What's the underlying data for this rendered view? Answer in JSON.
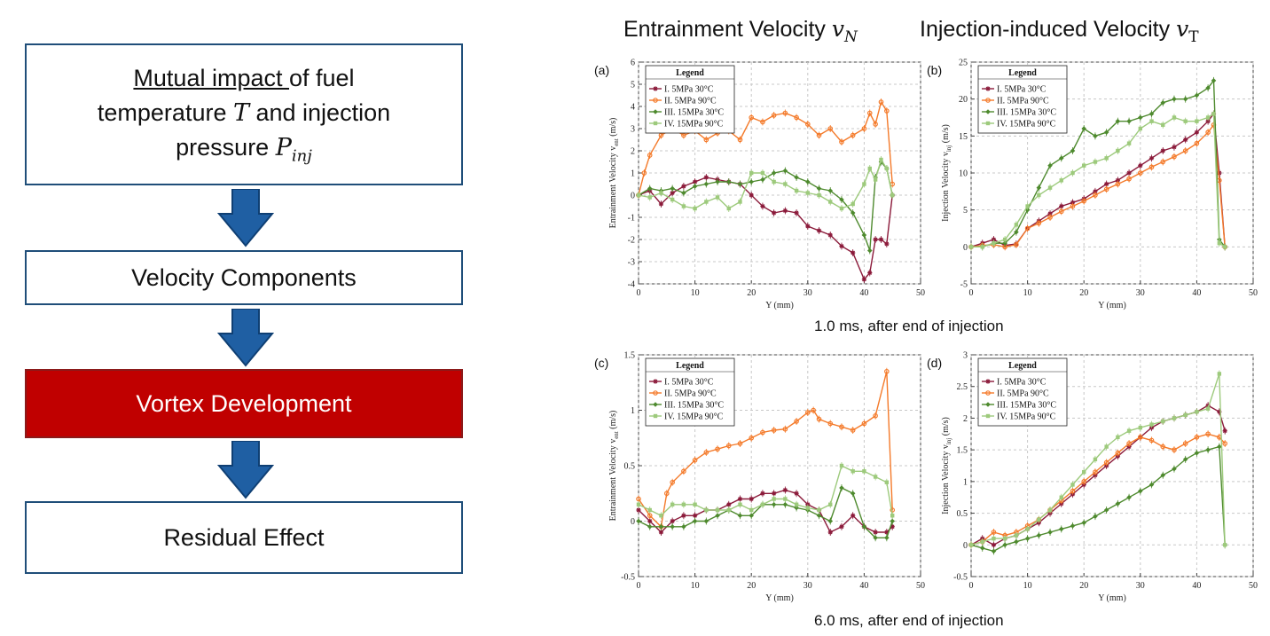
{
  "flowchart": {
    "box1": {
      "underline": "Mutual impact ",
      "line1_rest": "of fuel",
      "line2_pre": "temperature ",
      "line2_var": "T",
      "line2_post": " and injection",
      "line3_pre": "pressure ",
      "line3_var": "P",
      "line3_sub": "inj"
    },
    "box2": "Velocity Components",
    "box3": "Vortex Development",
    "box4": "Residual Effect",
    "colors": {
      "arrow": "#1f5fa3",
      "arrow_edge": "#0f3f73",
      "highlight": "#c00000",
      "border": "#1f4e79"
    }
  },
  "headers": {
    "left": {
      "text": "Entrainment Velocity ",
      "var": "v",
      "sub": "N"
    },
    "right": {
      "text": "Injection-induced Velocity ",
      "var": "v",
      "sub": "T"
    }
  },
  "captions": {
    "top": "1.0 ms, after end of injection",
    "bottom": "6.0 ms, after end of injection"
  },
  "chart_data": [
    {
      "id": "a",
      "type": "line",
      "panel_label": "(a)",
      "xlabel": "Y (mm)",
      "ylabel": "Entrainment Velocity v",
      "ylabel_sub": "ent",
      "ylabel_unit": "(m/s)",
      "xlim": [
        0,
        50
      ],
      "ylim": [
        -4,
        6
      ],
      "xticks": [
        0,
        10,
        20,
        30,
        40,
        50
      ],
      "yticks": [
        -4,
        -3,
        -2,
        -1,
        0,
        1,
        2,
        3,
        4,
        5,
        6
      ],
      "grid": true,
      "legend_title": "Legend",
      "legend_position": "top-left",
      "series": [
        {
          "name": "I. 5MPa 30°C",
          "color": "#8b1a3a",
          "x": [
            0,
            2,
            4,
            6,
            8,
            10,
            12,
            14,
            16,
            18,
            20,
            22,
            24,
            26,
            28,
            30,
            32,
            34,
            36,
            38,
            40,
            41,
            42,
            43,
            44,
            45
          ],
          "values": [
            0,
            0.2,
            -0.4,
            0.1,
            0.4,
            0.6,
            0.8,
            0.7,
            0.6,
            0.5,
            0,
            -0.5,
            -0.8,
            -0.7,
            -0.8,
            -1.4,
            -1.6,
            -1.8,
            -2.3,
            -2.6,
            -3.8,
            -3.5,
            -2.0,
            -2.0,
            -2.2,
            0
          ]
        },
        {
          "name": "II. 5MPa 90°C",
          "color": "#f47a2a",
          "x": [
            0,
            1,
            2,
            4,
            6,
            8,
            10,
            12,
            14,
            16,
            18,
            20,
            22,
            24,
            26,
            28,
            30,
            32,
            34,
            36,
            38,
            40,
            41,
            42,
            43,
            44,
            45
          ],
          "values": [
            0,
            1,
            1.8,
            2.7,
            3.0,
            2.7,
            2.9,
            2.5,
            2.8,
            2.9,
            2.5,
            3.5,
            3.3,
            3.6,
            3.7,
            3.5,
            3.2,
            2.7,
            3.0,
            2.4,
            2.7,
            3.0,
            3.7,
            3.2,
            4.2,
            3.8,
            0.5
          ]
        },
        {
          "name": "III. 15MPa 30°C",
          "color": "#4e8a2e",
          "x": [
            0,
            2,
            4,
            6,
            8,
            10,
            12,
            14,
            16,
            18,
            20,
            22,
            24,
            26,
            28,
            30,
            32,
            34,
            36,
            38,
            40,
            41,
            42,
            43,
            44,
            45
          ],
          "values": [
            0,
            0.3,
            0.2,
            0.3,
            0.1,
            0.4,
            0.5,
            0.6,
            0.6,
            0.5,
            0.6,
            0.7,
            1.0,
            1.1,
            0.8,
            0.6,
            0.3,
            0.2,
            -0.2,
            -0.8,
            -1.8,
            -2.5,
            0.8,
            1.5,
            1.2,
            0
          ]
        },
        {
          "name": "IV. 15MPa 90°C",
          "color": "#9dca7c",
          "x": [
            0,
            2,
            4,
            6,
            8,
            10,
            12,
            14,
            16,
            18,
            20,
            22,
            24,
            26,
            28,
            30,
            32,
            34,
            36,
            38,
            40,
            41,
            42,
            43,
            44,
            45
          ],
          "values": [
            0,
            -0.1,
            0.1,
            -0.2,
            -0.5,
            -0.6,
            -0.3,
            -0.1,
            -0.6,
            -0.3,
            1.0,
            1.0,
            0.6,
            0.5,
            0.2,
            0.1,
            0,
            -0.3,
            -0.6,
            -0.4,
            0.5,
            1.2,
            0.7,
            1.6,
            1.2,
            0
          ]
        }
      ]
    },
    {
      "id": "b",
      "type": "line",
      "panel_label": "(b)",
      "xlabel": "Y (mm)",
      "ylabel": "Injection Velocity v",
      "ylabel_sub": "inj",
      "ylabel_unit": "(m/s)",
      "xlim": [
        0,
        50
      ],
      "ylim": [
        -5,
        25
      ],
      "xticks": [
        0,
        10,
        20,
        30,
        40,
        50
      ],
      "yticks": [
        -5,
        0,
        5,
        10,
        15,
        20,
        25
      ],
      "grid": true,
      "legend_title": "Legend",
      "legend_position": "top-left",
      "series": [
        {
          "name": "I. 5MPa 30°C",
          "color": "#8b1a3a",
          "x": [
            0,
            2,
            4,
            6,
            8,
            10,
            12,
            14,
            16,
            18,
            20,
            22,
            24,
            26,
            28,
            30,
            32,
            34,
            36,
            38,
            40,
            42,
            43,
            44,
            45
          ],
          "values": [
            0,
            0.5,
            1,
            0.2,
            0.4,
            2.5,
            3.5,
            4.5,
            5.5,
            6.0,
            6.5,
            7.5,
            8.5,
            9.0,
            10,
            11,
            12,
            13,
            13.5,
            14.5,
            15.5,
            17,
            18,
            10,
            0
          ]
        },
        {
          "name": "II. 5MPa 90°C",
          "color": "#f47a2a",
          "x": [
            0,
            2,
            4,
            6,
            8,
            10,
            12,
            14,
            16,
            18,
            20,
            22,
            24,
            26,
            28,
            30,
            32,
            34,
            36,
            38,
            40,
            42,
            43,
            44,
            45
          ],
          "values": [
            0,
            0.2,
            0.3,
            0,
            0.3,
            2.5,
            3.2,
            4.0,
            4.8,
            5.5,
            6.2,
            7.0,
            7.8,
            8.5,
            9.2,
            10,
            10.8,
            11.5,
            12.2,
            13,
            14,
            15.5,
            16.5,
            9,
            0
          ]
        },
        {
          "name": "III. 15MPa 30°C",
          "color": "#4e8a2e",
          "x": [
            0,
            2,
            4,
            6,
            8,
            10,
            12,
            14,
            16,
            18,
            20,
            22,
            24,
            26,
            28,
            30,
            32,
            34,
            36,
            38,
            40,
            42,
            43,
            44,
            45
          ],
          "values": [
            0,
            0,
            0.5,
            0.5,
            2,
            5,
            8,
            11,
            12,
            13,
            16,
            15,
            15.5,
            17,
            17,
            17.5,
            18,
            19.5,
            20,
            20,
            20.5,
            21.5,
            22.5,
            1,
            0
          ]
        },
        {
          "name": "IV. 15MPa 90°C",
          "color": "#9dca7c",
          "x": [
            0,
            2,
            4,
            6,
            8,
            10,
            12,
            14,
            16,
            18,
            20,
            22,
            24,
            26,
            28,
            30,
            32,
            34,
            36,
            38,
            40,
            42,
            43,
            44,
            45
          ],
          "values": [
            0,
            0,
            0.5,
            1,
            3,
            5.5,
            7,
            8,
            9,
            10,
            11,
            11.5,
            12,
            13,
            14,
            16,
            17,
            16.5,
            17.5,
            17,
            17,
            17.5,
            18,
            0.5,
            0
          ]
        }
      ]
    },
    {
      "id": "c",
      "type": "line",
      "panel_label": "(c)",
      "xlabel": "Y (mm)",
      "ylabel": "Entrainment Velocity v",
      "ylabel_sub": "ent",
      "ylabel_unit": "(m/s)",
      "xlim": [
        0,
        50
      ],
      "ylim": [
        -0.5,
        1.5
      ],
      "xticks": [
        0,
        10,
        20,
        30,
        40,
        50
      ],
      "yticks": [
        -0.5,
        0,
        0.5,
        1,
        1.5
      ],
      "grid": true,
      "legend_title": "Legend",
      "legend_position": "top-left",
      "series": [
        {
          "name": "I. 5MPa 30°C",
          "color": "#8b1a3a",
          "x": [
            0,
            2,
            4,
            6,
            8,
            10,
            12,
            14,
            16,
            18,
            20,
            22,
            24,
            26,
            28,
            30,
            32,
            34,
            36,
            38,
            40,
            42,
            44,
            45
          ],
          "values": [
            0.1,
            0,
            -0.1,
            0,
            0.05,
            0.05,
            0.1,
            0.1,
            0.15,
            0.2,
            0.2,
            0.25,
            0.25,
            0.28,
            0.25,
            0.15,
            0.1,
            -0.1,
            -0.05,
            0.05,
            -0.05,
            -0.1,
            -0.1,
            -0.05
          ]
        },
        {
          "name": "II. 5MPa 90°C",
          "color": "#f47a2a",
          "x": [
            0,
            2,
            4,
            5,
            6,
            8,
            10,
            12,
            14,
            16,
            18,
            20,
            22,
            24,
            26,
            28,
            30,
            31,
            32,
            34,
            36,
            38,
            40,
            42,
            44,
            45
          ],
          "values": [
            0.2,
            0.05,
            -0.05,
            0.25,
            0.35,
            0.45,
            0.55,
            0.62,
            0.65,
            0.68,
            0.7,
            0.75,
            0.8,
            0.82,
            0.83,
            0.9,
            0.98,
            1.0,
            0.92,
            0.88,
            0.85,
            0.82,
            0.88,
            0.95,
            1.35,
            0.1
          ]
        },
        {
          "name": "III. 15MPa 30°C",
          "color": "#4e8a2e",
          "x": [
            0,
            2,
            4,
            6,
            8,
            10,
            12,
            14,
            16,
            18,
            20,
            22,
            24,
            26,
            28,
            30,
            32,
            34,
            36,
            38,
            40,
            42,
            44,
            45
          ],
          "values": [
            0,
            -0.05,
            -0.05,
            -0.05,
            -0.05,
            0,
            0,
            0.05,
            0.1,
            0.05,
            0.05,
            0.15,
            0.15,
            0.15,
            0.12,
            0.1,
            0.05,
            0.0,
            0.3,
            0.25,
            -0.05,
            -0.15,
            -0.15,
            0
          ]
        },
        {
          "name": "IV. 15MPa 90°C",
          "color": "#9dca7c",
          "x": [
            0,
            2,
            4,
            6,
            8,
            10,
            12,
            14,
            16,
            18,
            20,
            22,
            24,
            26,
            28,
            30,
            32,
            34,
            36,
            38,
            40,
            42,
            44,
            45
          ],
          "values": [
            0.15,
            0.1,
            0.05,
            0.15,
            0.15,
            0.15,
            0.1,
            0.1,
            0.1,
            0.15,
            0.1,
            0.15,
            0.2,
            0.2,
            0.15,
            0.12,
            0.1,
            0.15,
            0.5,
            0.45,
            0.45,
            0.4,
            0.35,
            0.05
          ]
        }
      ]
    },
    {
      "id": "d",
      "type": "line",
      "panel_label": "(d)",
      "xlabel": "Y (mm)",
      "ylabel": "Injection Velocity v",
      "ylabel_sub": "inj",
      "ylabel_unit": "(m/s)",
      "xlim": [
        0,
        50
      ],
      "ylim": [
        -0.5,
        3
      ],
      "xticks": [
        0,
        10,
        20,
        30,
        40,
        50
      ],
      "yticks": [
        -0.5,
        0,
        0.5,
        1,
        1.5,
        2,
        2.5,
        3
      ],
      "grid": true,
      "legend_title": "Legend",
      "legend_position": "top-left",
      "series": [
        {
          "name": "I. 5MPa 30°C",
          "color": "#8b1a3a",
          "x": [
            0,
            2,
            4,
            6,
            8,
            10,
            12,
            14,
            16,
            18,
            20,
            22,
            24,
            26,
            28,
            30,
            32,
            34,
            36,
            38,
            40,
            42,
            44,
            45
          ],
          "values": [
            0,
            0.1,
            0,
            0.1,
            0.15,
            0.25,
            0.35,
            0.5,
            0.65,
            0.8,
            0.95,
            1.1,
            1.25,
            1.4,
            1.55,
            1.7,
            1.85,
            1.95,
            2.0,
            2.05,
            2.1,
            2.2,
            2.1,
            1.8
          ]
        },
        {
          "name": "II. 5MPa 90°C",
          "color": "#f47a2a",
          "x": [
            0,
            2,
            4,
            6,
            8,
            10,
            12,
            14,
            16,
            18,
            20,
            22,
            24,
            26,
            28,
            30,
            32,
            34,
            36,
            38,
            40,
            42,
            44,
            45
          ],
          "values": [
            0,
            0.05,
            0.2,
            0.15,
            0.2,
            0.3,
            0.4,
            0.55,
            0.7,
            0.85,
            1.0,
            1.15,
            1.3,
            1.45,
            1.6,
            1.7,
            1.65,
            1.55,
            1.5,
            1.6,
            1.7,
            1.75,
            1.7,
            1.6
          ]
        },
        {
          "name": "III. 15MPa 30°C",
          "color": "#4e8a2e",
          "x": [
            0,
            2,
            4,
            6,
            8,
            10,
            12,
            14,
            16,
            18,
            20,
            22,
            24,
            26,
            28,
            30,
            32,
            34,
            36,
            38,
            40,
            42,
            44,
            45
          ],
          "values": [
            0,
            -0.05,
            -0.1,
            0,
            0.05,
            0.1,
            0.15,
            0.2,
            0.25,
            0.3,
            0.35,
            0.45,
            0.55,
            0.65,
            0.75,
            0.85,
            0.95,
            1.1,
            1.2,
            1.35,
            1.45,
            1.5,
            1.55,
            0
          ]
        },
        {
          "name": "IV. 15MPa 90°C",
          "color": "#9dca7c",
          "x": [
            0,
            2,
            4,
            6,
            8,
            10,
            12,
            14,
            16,
            18,
            20,
            22,
            24,
            26,
            28,
            30,
            32,
            34,
            36,
            38,
            40,
            42,
            44,
            45
          ],
          "values": [
            0,
            0.05,
            0.1,
            0.1,
            0.15,
            0.25,
            0.4,
            0.55,
            0.75,
            0.95,
            1.15,
            1.35,
            1.55,
            1.7,
            1.8,
            1.85,
            1.9,
            1.95,
            2.0,
            2.05,
            2.1,
            2.15,
            2.7,
            0
          ]
        }
      ]
    }
  ]
}
